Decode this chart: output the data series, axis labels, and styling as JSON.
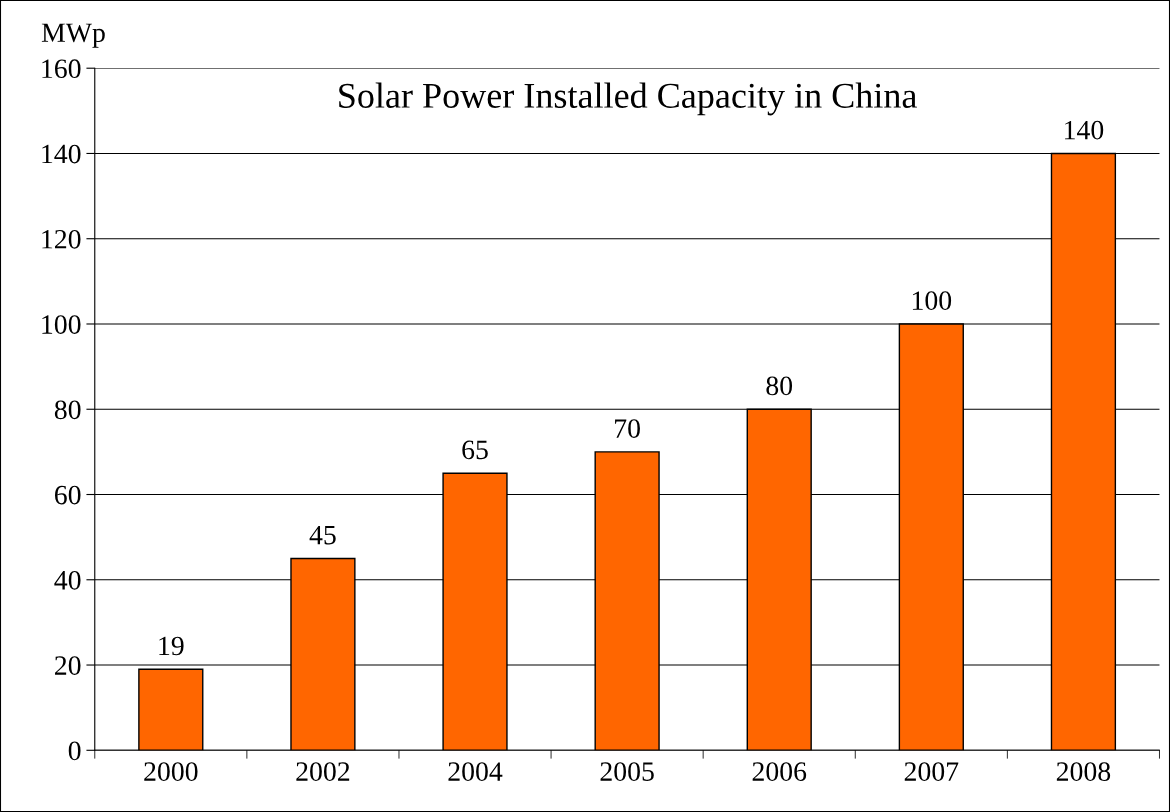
{
  "chart_data": {
    "type": "bar",
    "title": "Solar Power Installed Capacity in China",
    "ylabel": "MWp",
    "categories": [
      "2000",
      "2002",
      "2004",
      "2005",
      "2006",
      "2007",
      "2008"
    ],
    "values": [
      19,
      45,
      65,
      70,
      80,
      100,
      140
    ],
    "color": "#ff6600",
    "ylim": [
      0,
      160
    ],
    "yticks": [
      0,
      20,
      40,
      60,
      80,
      100,
      120,
      140,
      160
    ],
    "grid": "y",
    "data_labels": true
  }
}
